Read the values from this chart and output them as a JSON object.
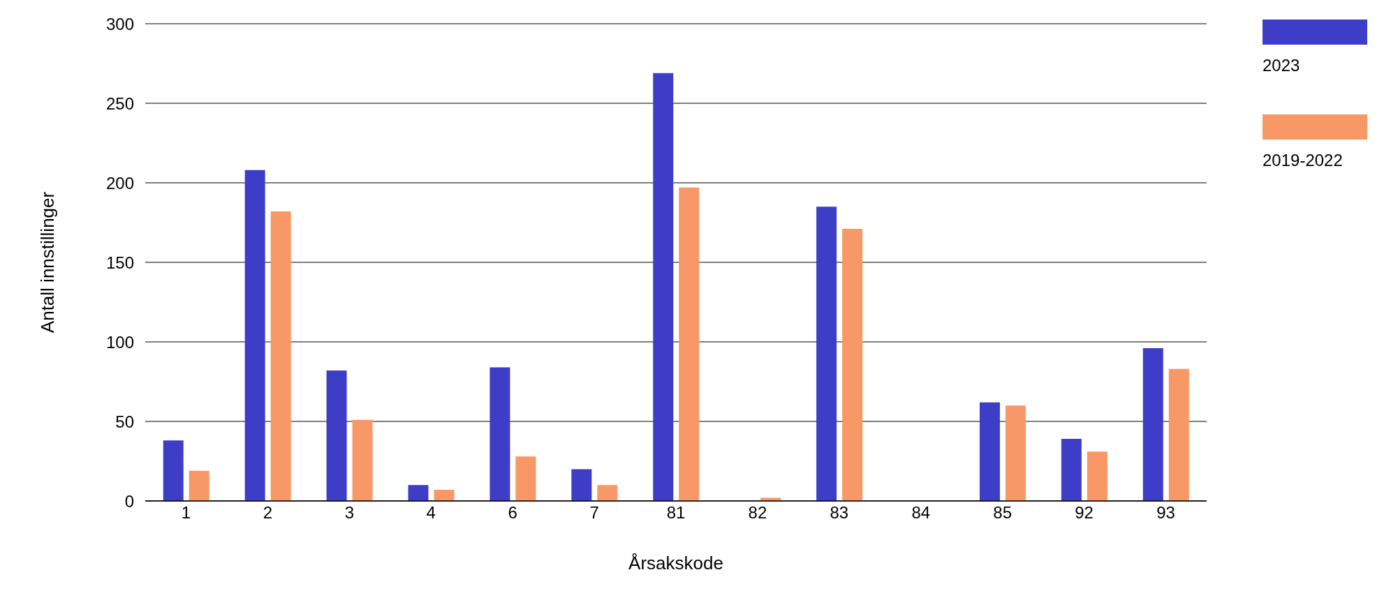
{
  "chart_data": {
    "type": "bar",
    "xlabel": "Årsakskode",
    "ylabel": "Antall innstillinger",
    "categories": [
      "1",
      "2",
      "3",
      "4",
      "6",
      "7",
      "81",
      "82",
      "83",
      "84",
      "85",
      "92",
      "93"
    ],
    "series": [
      {
        "name": "2023",
        "color": "#3d3dc8",
        "values": [
          38,
          208,
          82,
          10,
          84,
          20,
          269,
          0,
          185,
          0,
          62,
          39,
          96
        ]
      },
      {
        "name": "2019-2022",
        "color": "#f79866",
        "values": [
          19,
          182,
          51,
          7,
          28,
          10,
          197,
          2,
          171,
          0,
          60,
          31,
          83
        ]
      }
    ],
    "ylim": [
      0,
      300
    ],
    "yticks": [
      0,
      50,
      100,
      150,
      200,
      250,
      300
    ],
    "grid": "y",
    "legend": "top right"
  }
}
